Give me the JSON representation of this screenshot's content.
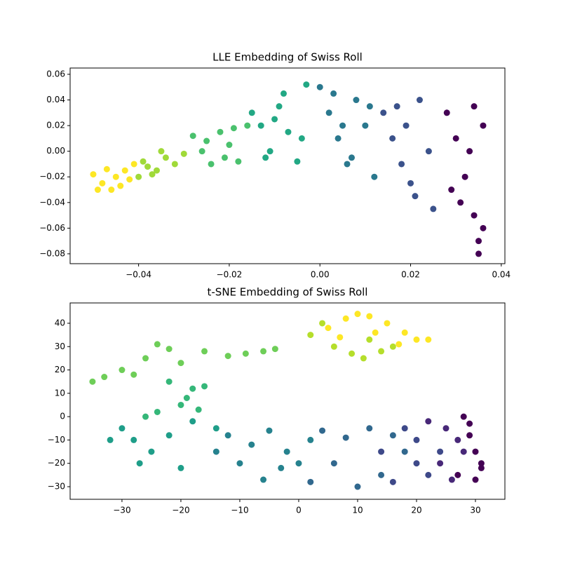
{
  "chart_data": [
    {
      "type": "scatter",
      "title": "LLE Embedding of Swiss Roll",
      "xlim": [
        -0.0551,
        0.0408
      ],
      "ylim": [
        -0.0877,
        0.0649
      ],
      "xticks": [
        {
          "value": -0.04,
          "label": "−0.04"
        },
        {
          "value": -0.02,
          "label": "−0.02"
        },
        {
          "value": 0,
          "label": "0.00"
        },
        0.02,
        0.04
      ],
      "yticks": [
        {
          "value": -0.08,
          "label": "−0.08"
        },
        {
          "value": -0.06,
          "label": "−0.06"
        },
        {
          "value": -0.04,
          "label": "−0.04"
        },
        {
          "value": -0.02,
          "label": "−0.02"
        },
        {
          "value": 0,
          "label": "0.00"
        },
        0.02,
        0.04,
        0.06
      ],
      "series": [
        {
          "color": "#fde725",
          "x": [
            -0.05,
            -0.048,
            -0.046,
            -0.045,
            -0.044,
            -0.042,
            -0.047,
            -0.043,
            -0.049,
            -0.041
          ],
          "values": [
            -0.018,
            -0.025,
            -0.03,
            -0.02,
            -0.027,
            -0.022,
            -0.014,
            -0.015,
            -0.03,
            -0.01
          ]
        },
        {
          "color": "#a0da39",
          "x": [
            -0.04,
            -0.038,
            -0.036,
            -0.034,
            -0.032,
            -0.035,
            -0.03,
            -0.037,
            -0.039
          ],
          "values": [
            -0.02,
            -0.012,
            -0.015,
            -0.005,
            -0.01,
            0.0,
            -0.002,
            -0.018,
            -0.008
          ]
        },
        {
          "color": "#4ac16d",
          "x": [
            -0.028,
            -0.026,
            -0.024,
            -0.022,
            -0.02,
            -0.018,
            -0.016,
            -0.025,
            -0.021,
            -0.019
          ],
          "values": [
            0.012,
            0.0,
            -0.01,
            0.015,
            0.005,
            -0.008,
            0.02,
            0.008,
            -0.005,
            0.018
          ]
        },
        {
          "color": "#22a884",
          "x": [
            -0.015,
            -0.013,
            -0.011,
            -0.009,
            -0.007,
            -0.005,
            -0.003,
            -0.012,
            -0.008,
            -0.004,
            -0.01
          ],
          "values": [
            0.03,
            0.02,
            0.0,
            0.035,
            0.015,
            -0.008,
            0.052,
            -0.005,
            0.045,
            0.01,
            0.025
          ]
        },
        {
          "color": "#2a788e",
          "x": [
            0.0,
            0.002,
            0.004,
            0.006,
            0.008,
            0.01,
            0.012,
            0.003,
            0.007,
            0.011,
            0.005
          ],
          "values": [
            0.05,
            0.03,
            0.01,
            -0.01,
            0.04,
            0.02,
            -0.02,
            0.045,
            -0.005,
            0.035,
            0.02
          ]
        },
        {
          "color": "#3b528b",
          "x": [
            0.014,
            0.016,
            0.018,
            0.02,
            0.022,
            0.024,
            0.017,
            0.021,
            0.025,
            0.019
          ],
          "values": [
            0.03,
            0.01,
            -0.01,
            -0.025,
            0.04,
            0.0,
            0.035,
            -0.035,
            -0.045,
            0.02
          ]
        },
        {
          "color": "#440154",
          "x": [
            0.028,
            0.03,
            0.032,
            0.034,
            0.035,
            0.036,
            0.031,
            0.033,
            0.035,
            0.029,
            0.034,
            0.036
          ],
          "values": [
            0.03,
            0.01,
            -0.02,
            -0.05,
            -0.07,
            0.02,
            -0.04,
            0.0,
            -0.08,
            -0.03,
            0.035,
            -0.06
          ]
        }
      ]
    },
    {
      "type": "scatter",
      "title": "t-SNE Embedding of Swiss Roll",
      "xlim": [
        -38.8,
        35.0
      ],
      "ylim": [
        -35.4,
        48.7
      ],
      "xticks": [
        {
          "value": -30,
          "label": "−30"
        },
        {
          "value": -20,
          "label": "−20"
        },
        {
          "value": -10,
          "label": "−10"
        },
        0,
        10,
        20,
        30
      ],
      "yticks": [
        {
          "value": -30,
          "label": "−30"
        },
        {
          "value": -20,
          "label": "−20"
        },
        {
          "value": -10,
          "label": "−10"
        },
        0,
        10,
        20,
        30,
        40
      ],
      "series": [
        {
          "color": "#fde725",
          "x": [
            5,
            8,
            10,
            12,
            15,
            18,
            20,
            22,
            7,
            13,
            17
          ],
          "values": [
            38,
            42,
            44,
            43,
            40,
            36,
            33,
            33,
            34,
            36,
            31
          ]
        },
        {
          "color": "#b5de2b",
          "x": [
            2,
            6,
            9,
            11,
            14,
            4,
            16,
            12
          ],
          "values": [
            35,
            30,
            27,
            25,
            28,
            40,
            30,
            33
          ]
        },
        {
          "color": "#6ece58",
          "x": [
            -16,
            -12,
            -9,
            -6,
            -4,
            -24,
            -22,
            -26,
            -30,
            -33,
            -35,
            -28,
            -20
          ],
          "values": [
            28,
            26,
            27,
            28,
            29,
            31,
            29,
            25,
            20,
            17,
            15,
            18,
            23
          ]
        },
        {
          "color": "#35b779",
          "x": [
            -22,
            -18,
            -16,
            -20,
            -24,
            -26,
            -19,
            -17
          ],
          "values": [
            15,
            12,
            13,
            5,
            2,
            0,
            8,
            3
          ]
        },
        {
          "color": "#1f9e89",
          "x": [
            -30,
            -28,
            -25,
            -22,
            -18,
            -14,
            -32,
            -27,
            -20
          ],
          "values": [
            -5,
            -10,
            -15,
            -8,
            -2,
            -5,
            -10,
            -20,
            -22
          ]
        },
        {
          "color": "#26828e",
          "x": [
            -12,
            -8,
            -5,
            -2,
            0,
            -10,
            -6,
            -3,
            2,
            -14
          ],
          "values": [
            -8,
            -12,
            -6,
            -15,
            -20,
            -20,
            -27,
            -22,
            -10,
            -15
          ]
        },
        {
          "color": "#31688e",
          "x": [
            4,
            8,
            12,
            16,
            6,
            10,
            14,
            18,
            2
          ],
          "values": [
            -6,
            -9,
            -5,
            -8,
            -20,
            -30,
            -25,
            -15,
            -28
          ]
        },
        {
          "color": "#3e4989",
          "x": [
            18,
            20,
            22,
            24,
            16,
            20,
            14
          ],
          "values": [
            -5,
            -10,
            -25,
            -15,
            -28,
            -20,
            -15
          ]
        },
        {
          "color": "#482878",
          "x": [
            22,
            25,
            27,
            24,
            26,
            28
          ],
          "values": [
            -2,
            -5,
            -10,
            -20,
            -27,
            -15
          ]
        },
        {
          "color": "#440154",
          "x": [
            28,
            29,
            30,
            31,
            30,
            31,
            29,
            27
          ],
          "values": [
            0,
            -8,
            -15,
            -22,
            -27,
            -20,
            -3,
            -25
          ]
        }
      ]
    }
  ]
}
